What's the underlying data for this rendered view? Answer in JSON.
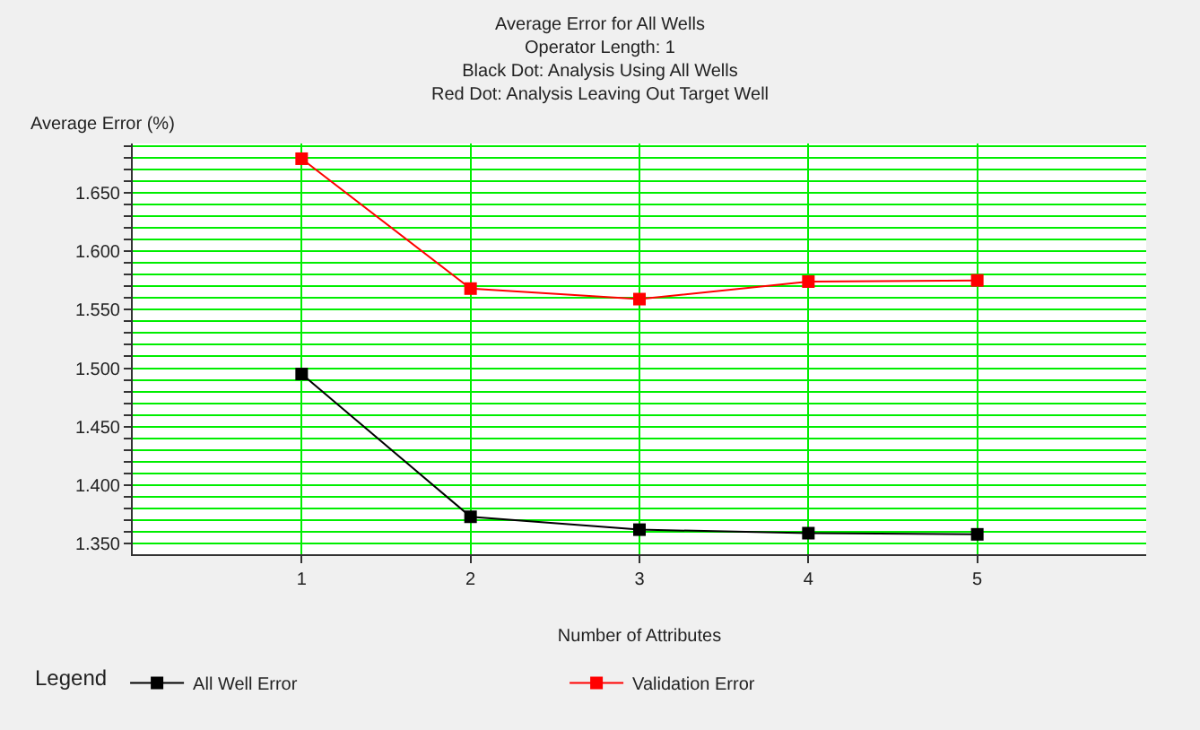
{
  "chart_data": {
    "type": "line",
    "title": "Average Error for All Wells",
    "subtitle": "Operator Length: 1",
    "annotations": [
      "Black Dot: Analysis Using All Wells",
      "Red Dot: Analysis Leaving Out Target Well"
    ],
    "xlabel": "Number of Attributes",
    "ylabel": "Average Error (%)",
    "legend_title": "Legend",
    "x": [
      1,
      2,
      3,
      4,
      5
    ],
    "series": [
      {
        "name": "All Well Error",
        "color": "#000000",
        "values": [
          1.495,
          1.373,
          1.362,
          1.359,
          1.358
        ]
      },
      {
        "name": "Validation Error",
        "color": "#ff0000",
        "values": [
          1.679,
          1.568,
          1.559,
          1.574,
          1.575
        ]
      }
    ],
    "xlim": [
      0,
      6
    ],
    "xticks": [
      1,
      2,
      3,
      4,
      5
    ],
    "ylim": [
      1.341,
      1.692
    ],
    "yticks": [
      {
        "value": 1.35,
        "label": "1.350"
      },
      {
        "value": 1.36,
        "label": null
      },
      {
        "value": 1.37,
        "label": null
      },
      {
        "value": 1.38,
        "label": null
      },
      {
        "value": 1.39,
        "label": null
      },
      {
        "value": 1.4,
        "label": "1.400"
      },
      {
        "value": 1.41,
        "label": null
      },
      {
        "value": 1.42,
        "label": null
      },
      {
        "value": 1.43,
        "label": null
      },
      {
        "value": 1.44,
        "label": null
      },
      {
        "value": 1.45,
        "label": "1.450"
      },
      {
        "value": 1.46,
        "label": null
      },
      {
        "value": 1.47,
        "label": null
      },
      {
        "value": 1.48,
        "label": null
      },
      {
        "value": 1.49,
        "label": null
      },
      {
        "value": 1.5,
        "label": "1.500"
      },
      {
        "value": 1.51,
        "label": null
      },
      {
        "value": 1.52,
        "label": null
      },
      {
        "value": 1.53,
        "label": null
      },
      {
        "value": 1.54,
        "label": null
      },
      {
        "value": 1.55,
        "label": "1.550"
      },
      {
        "value": 1.56,
        "label": null
      },
      {
        "value": 1.57,
        "label": null
      },
      {
        "value": 1.58,
        "label": null
      },
      {
        "value": 1.59,
        "label": null
      },
      {
        "value": 1.6,
        "label": "1.600"
      },
      {
        "value": 1.61,
        "label": null
      },
      {
        "value": 1.62,
        "label": null
      },
      {
        "value": 1.63,
        "label": null
      },
      {
        "value": 1.64,
        "label": null
      },
      {
        "value": 1.65,
        "label": "1.650"
      },
      {
        "value": 1.66,
        "label": null
      },
      {
        "value": 1.67,
        "label": null
      },
      {
        "value": 1.68,
        "label": null
      },
      {
        "value": 1.69,
        "label": null
      }
    ],
    "grid": true,
    "legend": "bottom",
    "marker": "square",
    "line_style": "solid"
  }
}
